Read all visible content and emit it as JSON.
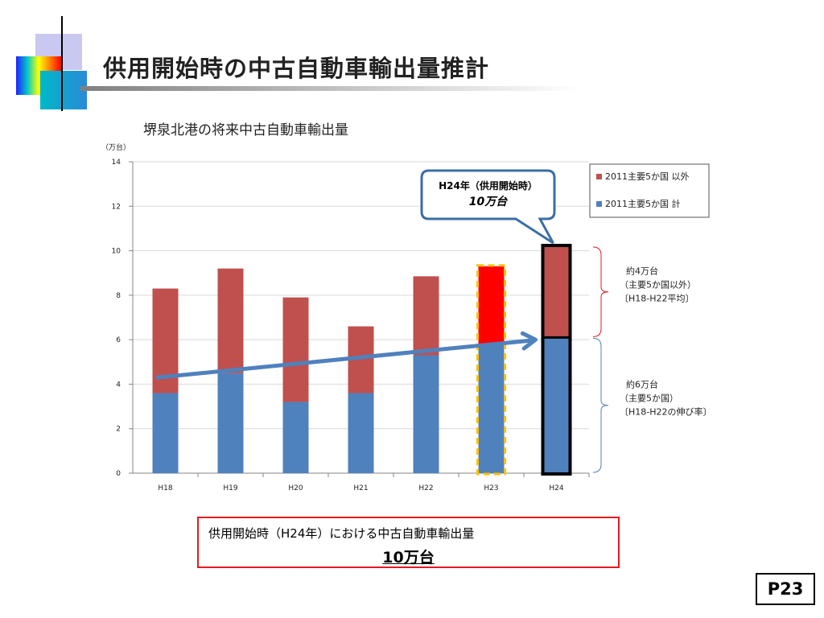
{
  "slide": {
    "title": "供用開始時の中古自動車輸出量推計",
    "page_number": "P23"
  },
  "summary": {
    "text": "供用開始時（H24年）における中古自動車輸出量",
    "value": "10万台"
  },
  "chart_data": {
    "type": "bar",
    "stacked": true,
    "title": "堺泉北港の将来中古自動車輸出量",
    "ylabel": "（万台）",
    "xlabel": "",
    "ylim": [
      0,
      14
    ],
    "yticks": [
      0,
      2,
      4,
      6,
      8,
      10,
      12,
      14
    ],
    "grid": true,
    "legend_position": "right",
    "categories": [
      "H18",
      "H19",
      "H20",
      "H21",
      "H22",
      "H23",
      "H24"
    ],
    "series": [
      {
        "name": "2011主要5か国 計",
        "color": "#4f81bd",
        "values": [
          3.6,
          4.5,
          3.2,
          3.6,
          5.3,
          5.8,
          6.1
        ]
      },
      {
        "name": "2011主要5か国 以外",
        "color": "#c0504d",
        "values": [
          4.7,
          4.7,
          4.7,
          3.0,
          3.55,
          3.5,
          4.1
        ]
      }
    ],
    "highlights": {
      "H23": {
        "top_color": "#ff0000",
        "outline": "#ffc000",
        "style": "dashed"
      },
      "H24": {
        "outline": "#000000",
        "style": "solid"
      }
    },
    "trend_arrow": {
      "from_category": "H18",
      "from_value": 4.3,
      "to_category": "H24",
      "to_value": 6.0,
      "color": "#4f81bd"
    },
    "callout": {
      "line1": "H24年（供用開始時）",
      "line2": "10万台"
    },
    "annotations": [
      {
        "lines": [
          "約4万台",
          "（主要5か国以外）",
          "〔H18-H22平均〕"
        ],
        "range": [
          6.1,
          10.2
        ]
      },
      {
        "lines": [
          "約6万台",
          "（主要5か国）",
          "〔H18-H22の伸び率〕"
        ],
        "range": [
          0,
          6.1
        ]
      }
    ]
  }
}
